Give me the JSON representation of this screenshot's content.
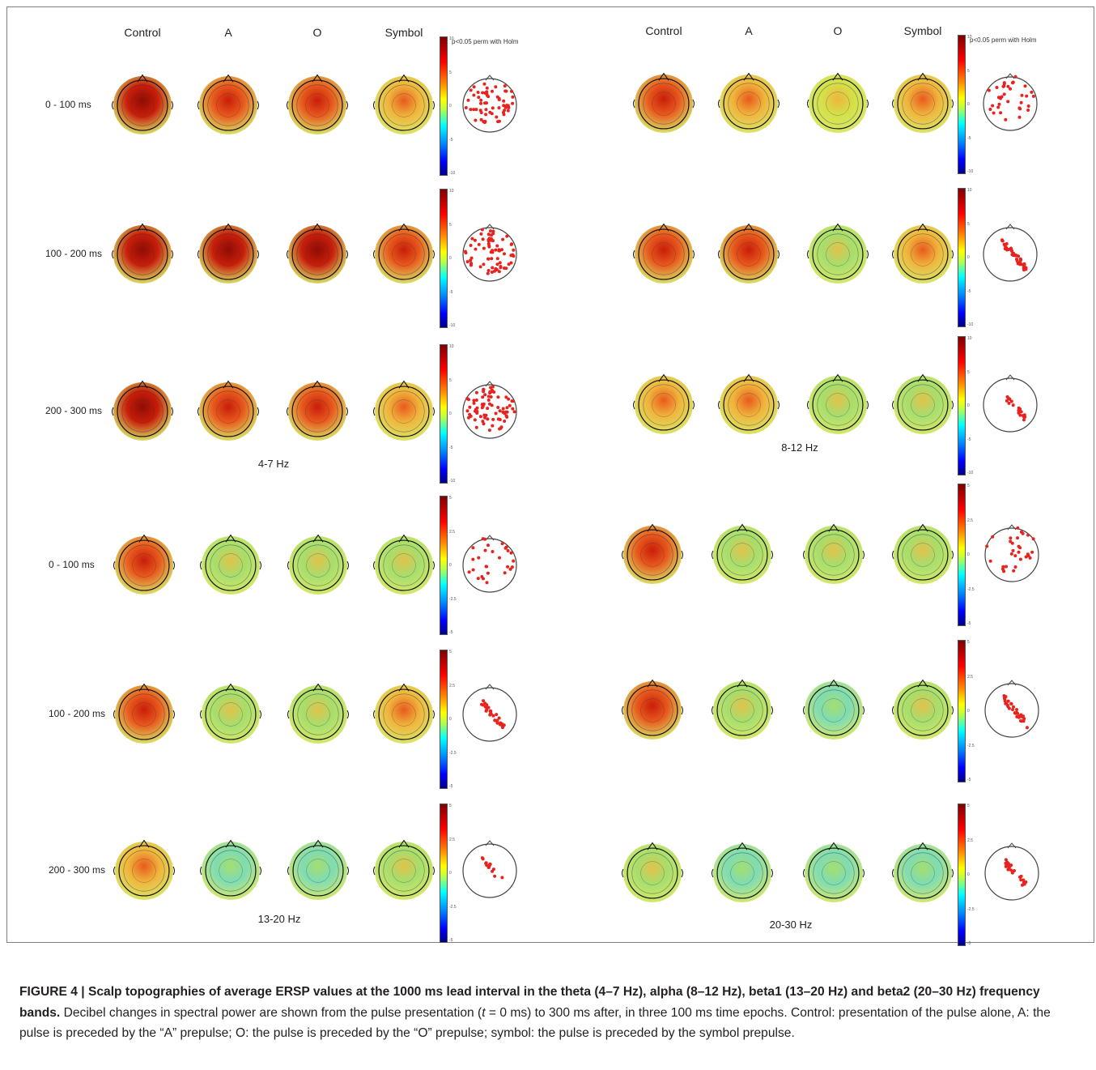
{
  "figure": {
    "columns": [
      "Control",
      "A",
      "O",
      "Symbol"
    ],
    "significance_label": "p<0.05 perm with Holm",
    "panels": [
      {
        "band": "4-7 Hz",
        "rows": [
          "0 - 100 ms",
          "100 - 200 ms",
          "200 - 300 ms"
        ],
        "colorbar_ticks": [
          "10",
          "5",
          "0",
          "-5",
          "-10"
        ]
      },
      {
        "band": "8-12 Hz",
        "rows": [
          "",
          "",
          ""
        ],
        "colorbar_ticks": [
          "10",
          "5",
          "0",
          "-5",
          "-10"
        ]
      },
      {
        "band": "13-20 Hz",
        "rows": [
          "0 - 100 ms",
          "100 - 200 ms",
          "200 - 300 ms"
        ],
        "colorbar_ticks": [
          "5",
          "2.5",
          "0",
          "-2.5",
          "-5"
        ]
      },
      {
        "band": "20-30 Hz",
        "rows": [
          "",
          "",
          ""
        ],
        "colorbar_ticks": [
          "5",
          "2.5",
          "0",
          "-2.5",
          "-5"
        ]
      }
    ]
  },
  "caption": {
    "label": "FIGURE 4 | Scalp topographies of average ERSP values at the 1000 ms lead interval in the theta (4–7 Hz), alpha (8–12 Hz), beta1 (13–20 Hz) and beta2 (20–30 Hz) frequency bands.",
    "text_part1": " Decibel changes in spectral power are shown from the pulse presentation (",
    "text_italic": "t",
    "text_part2": " = 0 ms) to 300 ms after, in three 100 ms time epochs. Control: presentation of the pulse alone, A: the pulse is preceded by the “A” prepulse; O: the pulse is preceded by the “O” prepulse; symbol: the pulse is preceded by the symbol prepulse."
  },
  "colors": {
    "strong": "#c81e0a",
    "high": "#e85a1e",
    "mid": "#f0b43c",
    "warmgreen": "#d4e04a",
    "green": "#a6de6e",
    "cool": "#7edcb4",
    "sigdot": "#e8221e"
  }
}
